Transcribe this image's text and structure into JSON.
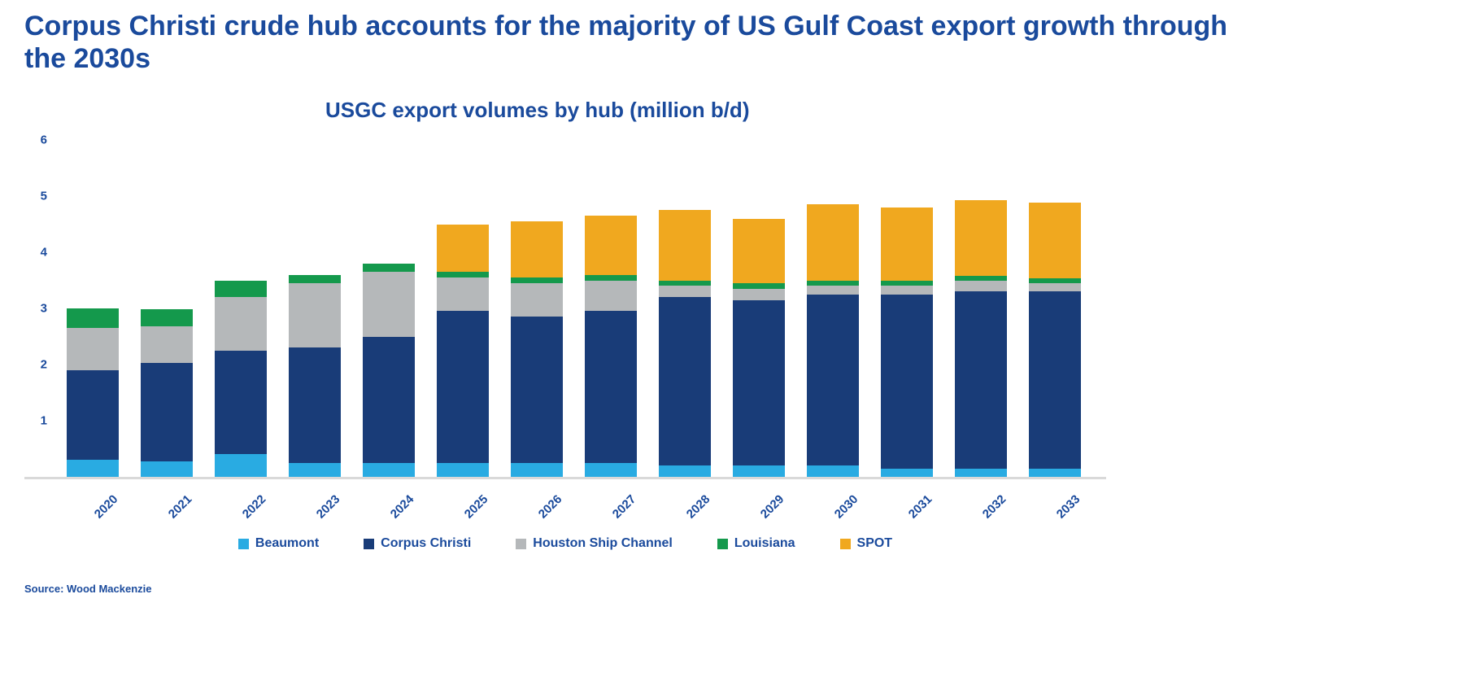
{
  "page": {
    "title": "Corpus Christi crude hub accounts for the majority of US Gulf Coast export growth through the 2030s",
    "source": "Source: Wood Mackenzie"
  },
  "chart_data": {
    "type": "bar",
    "stacked": true,
    "title": "USGC export volumes by hub (million b/d)",
    "xlabel": "",
    "ylabel": "",
    "ylim": [
      0,
      6
    ],
    "yticks": [
      1,
      2,
      3,
      4,
      5,
      6
    ],
    "grid": false,
    "legend_position": "bottom",
    "categories": [
      "2020",
      "2021",
      "2022",
      "2023",
      "2024",
      "2025",
      "2026",
      "2027",
      "2028",
      "2029",
      "2030",
      "2031",
      "2032",
      "2033"
    ],
    "series": [
      {
        "name": "Beaumont",
        "color": "#29ABE2",
        "values": [
          0.3,
          0.28,
          0.4,
          0.25,
          0.25,
          0.25,
          0.25,
          0.25,
          0.2,
          0.2,
          0.2,
          0.15,
          0.15,
          0.15
        ]
      },
      {
        "name": "Corpus Christi",
        "color": "#193C78",
        "values": [
          1.6,
          1.75,
          1.85,
          2.05,
          2.25,
          2.7,
          2.6,
          2.7,
          3.0,
          2.95,
          3.05,
          3.1,
          3.15,
          3.15
        ]
      },
      {
        "name": "Houston Ship Channel",
        "color": "#B5B8BA",
        "values": [
          0.75,
          0.65,
          0.95,
          1.15,
          1.15,
          0.6,
          0.6,
          0.55,
          0.2,
          0.2,
          0.15,
          0.15,
          0.2,
          0.15
        ]
      },
      {
        "name": "Louisiana",
        "color": "#14994C",
        "values": [
          0.35,
          0.3,
          0.3,
          0.15,
          0.15,
          0.1,
          0.1,
          0.1,
          0.1,
          0.1,
          0.1,
          0.1,
          0.08,
          0.08
        ]
      },
      {
        "name": "SPOT",
        "color": "#F0A81F",
        "values": [
          0.0,
          0.0,
          0.0,
          0.0,
          0.0,
          0.85,
          1.0,
          1.05,
          1.25,
          1.15,
          1.35,
          1.3,
          1.35,
          1.35
        ]
      }
    ]
  }
}
